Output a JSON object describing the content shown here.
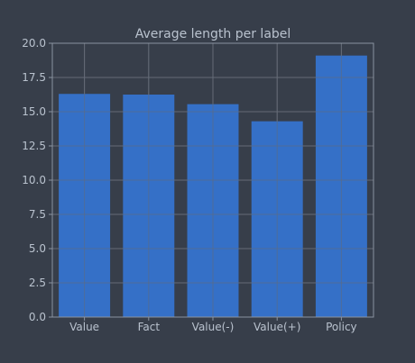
{
  "colors": {
    "background": "#373e4a",
    "bar": "#3570c7",
    "grid": "#646b77",
    "axis": "#8a93a0",
    "text": "#b9c2ce"
  },
  "chart_data": {
    "type": "bar",
    "title": "Average length per label",
    "xlabel": "",
    "ylabel": "",
    "categories": [
      "Value",
      "Fact",
      "Value(-)",
      "Value(+)",
      "Policy"
    ],
    "values": [
      16.3,
      16.25,
      15.55,
      14.3,
      19.1
    ],
    "ylim": [
      0,
      20
    ],
    "yticks": [
      0.0,
      2.5,
      5.0,
      7.5,
      10.0,
      12.5,
      15.0,
      17.5,
      20.0
    ],
    "ytick_labels": [
      "0.0",
      "2.5",
      "5.0",
      "7.5",
      "10.0",
      "12.5",
      "15.0",
      "17.5",
      "20.0"
    ],
    "grid": true,
    "legend": "none"
  }
}
